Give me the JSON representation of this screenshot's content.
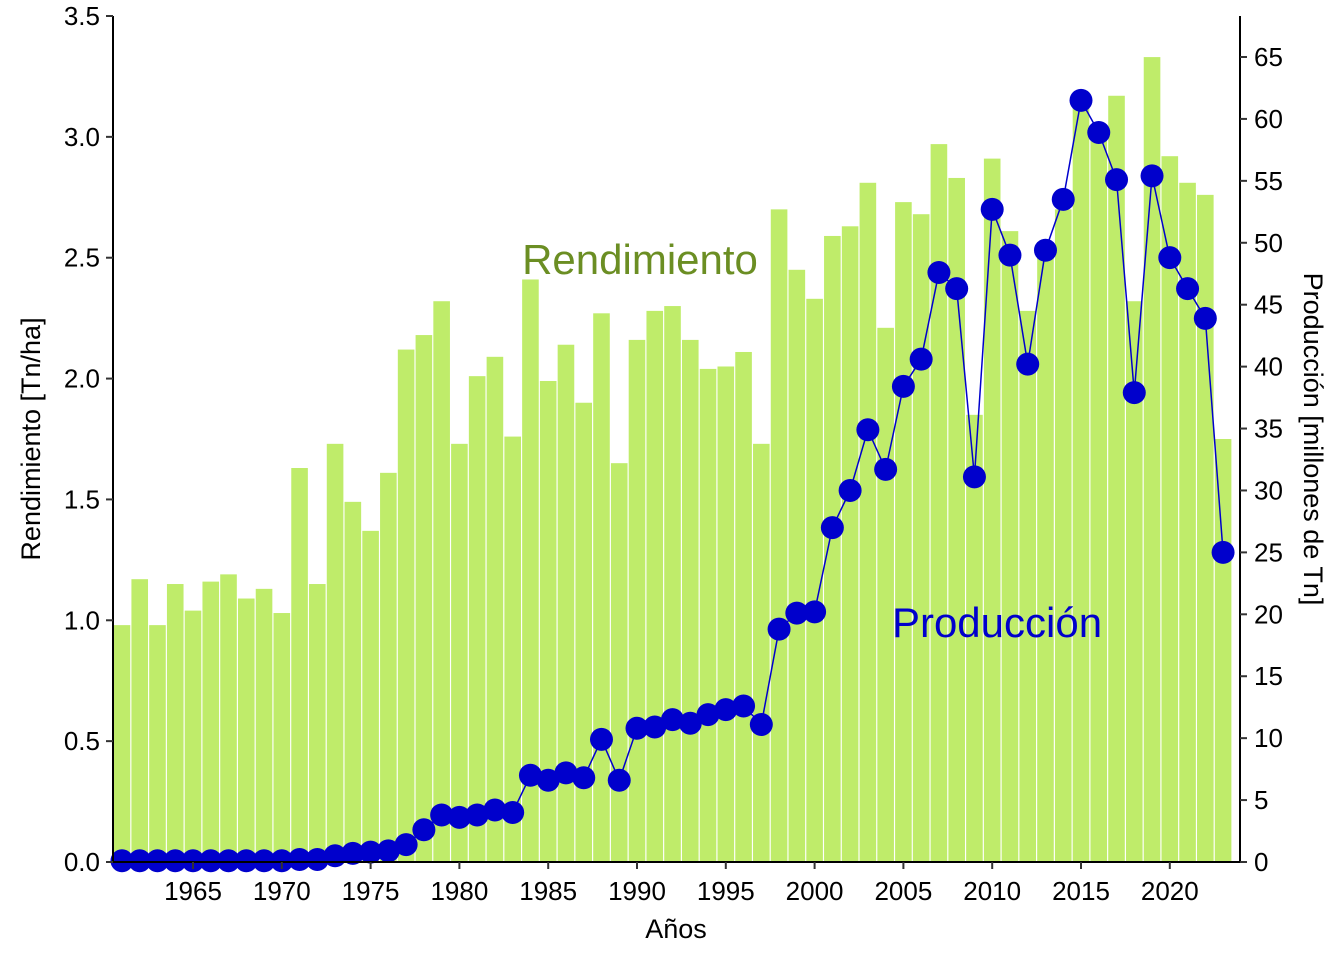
{
  "chart_data": {
    "type": "bar+line",
    "xlabel": "Años",
    "ylabel_left": "Rendimiento [Tn/ha]",
    "ylabel_right": "Producción [millones de Tn]",
    "ylim_left": [
      0,
      3.5
    ],
    "ylim_right": [
      0,
      68.3
    ],
    "left_ticks": [
      "0.0",
      "0.5",
      "1.0",
      "1.5",
      "2.0",
      "2.5",
      "3.0",
      "3.5"
    ],
    "right_ticks": [
      "0",
      "5",
      "10",
      "15",
      "20",
      "25",
      "30",
      "35",
      "40",
      "45",
      "50",
      "55",
      "60",
      "65"
    ],
    "x_ticks": [
      "1965",
      "1970",
      "1975",
      "1980",
      "1985",
      "1990",
      "1995",
      "2000",
      "2005",
      "2010",
      "2015",
      "2020"
    ],
    "annotations": {
      "rendimiento": "Rendimiento",
      "produccion": "Producción"
    },
    "colors": {
      "bar": "#bfec6a",
      "line": "#0000cc",
      "rendimiento_label": "#6b8e23",
      "produccion_label": "#0000cc"
    },
    "years": [
      1961,
      1962,
      1963,
      1964,
      1965,
      1966,
      1967,
      1968,
      1969,
      1970,
      1971,
      1972,
      1973,
      1974,
      1975,
      1976,
      1977,
      1978,
      1979,
      1980,
      1981,
      1982,
      1983,
      1984,
      1985,
      1986,
      1987,
      1988,
      1989,
      1990,
      1991,
      1992,
      1993,
      1994,
      1995,
      1996,
      1997,
      1998,
      1999,
      2000,
      2001,
      2002,
      2003,
      2004,
      2005,
      2006,
      2007,
      2008,
      2009,
      2010,
      2011,
      2012,
      2013,
      2014,
      2015,
      2016,
      2017,
      2018,
      2019,
      2020,
      2021,
      2022,
      2023
    ],
    "series": [
      {
        "name": "Rendimiento",
        "axis": "left",
        "type": "bar",
        "values": [
          0.98,
          1.17,
          0.98,
          1.15,
          1.04,
          1.16,
          1.19,
          1.09,
          1.13,
          1.03,
          1.63,
          1.15,
          1.73,
          1.49,
          1.37,
          1.61,
          2.12,
          2.18,
          2.32,
          1.73,
          2.01,
          2.09,
          1.76,
          2.41,
          1.99,
          2.14,
          1.9,
          2.27,
          1.65,
          2.16,
          2.28,
          2.3,
          2.16,
          2.04,
          2.05,
          2.11,
          1.73,
          2.7,
          2.45,
          2.33,
          2.59,
          2.63,
          2.81,
          2.21,
          2.73,
          2.68,
          2.97,
          2.83,
          1.85,
          2.91,
          2.61,
          2.28,
          2.53,
          2.7,
          3.12,
          3.04,
          3.17,
          2.32,
          3.33,
          2.92,
          2.81,
          2.76,
          1.75
        ]
      },
      {
        "name": "Producción",
        "axis": "right",
        "type": "line",
        "values": [
          0.1,
          0.1,
          0.1,
          0.1,
          0.1,
          0.1,
          0.1,
          0.1,
          0.1,
          0.1,
          0.2,
          0.2,
          0.5,
          0.7,
          0.8,
          0.9,
          1.4,
          2.6,
          3.8,
          3.6,
          3.8,
          4.2,
          4.0,
          7.0,
          6.6,
          7.2,
          6.8,
          9.9,
          6.6,
          10.8,
          10.9,
          11.5,
          11.2,
          11.9,
          12.3,
          12.6,
          11.1,
          18.8,
          20.1,
          20.2,
          27.0,
          30.0,
          34.9,
          31.7,
          38.4,
          40.6,
          47.6,
          46.3,
          31.1,
          52.7,
          49.0,
          40.2,
          49.4,
          53.5,
          61.5,
          58.9,
          55.1,
          37.9,
          55.4,
          48.8,
          46.3,
          43.9,
          25.0
        ]
      }
    ]
  }
}
